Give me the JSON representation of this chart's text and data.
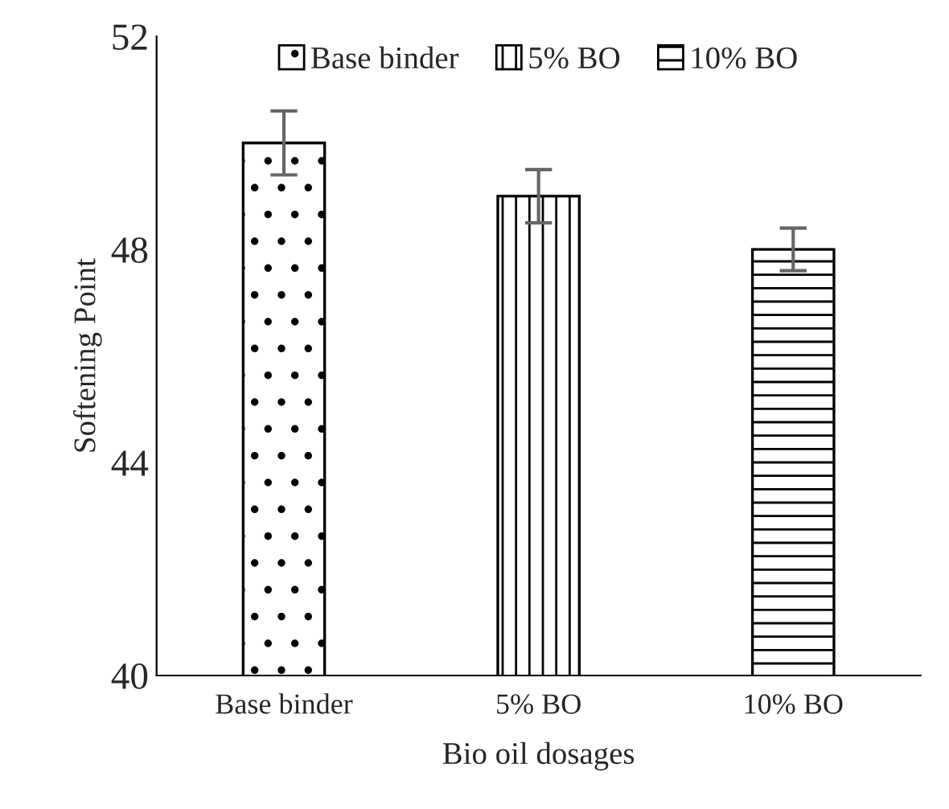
{
  "chart_data": {
    "type": "bar",
    "xlabel": "Bio oil dosages",
    "ylabel": "Softening Point",
    "categories": [
      "Base binder",
      "5% BO",
      "10% BO"
    ],
    "series": [
      {
        "name": "Base binder",
        "color": "#000000",
        "values": [
          50.0,
          null,
          null
        ],
        "errors": [
          0.6,
          null,
          null
        ]
      },
      {
        "name": "5% BO",
        "color": "#000000",
        "values": [
          null,
          49.0,
          null
        ],
        "errors": [
          null,
          0.5,
          null
        ]
      },
      {
        "name": "10% BO",
        "color": "#000000",
        "values": [
          null,
          null,
          48.0
        ],
        "errors": [
          null,
          null,
          0.4
        ]
      }
    ],
    "ylim": [
      40,
      52
    ],
    "yticks": [
      40,
      44,
      48,
      52
    ],
    "grid": false,
    "legend": "top"
  }
}
